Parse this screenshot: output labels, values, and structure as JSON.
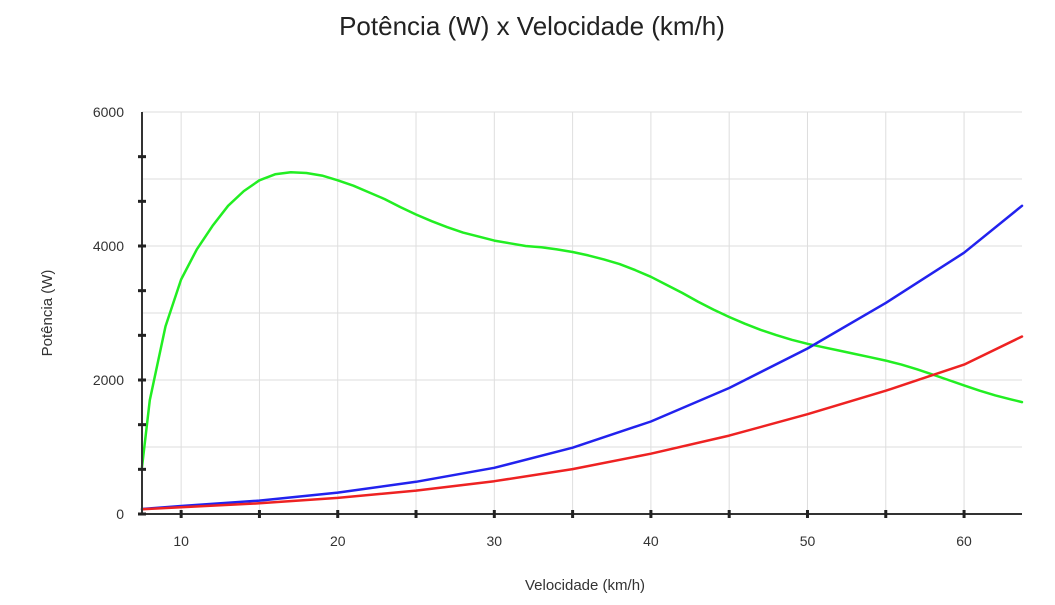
{
  "chart_data": {
    "type": "line",
    "title": "Potência (W) x Velocidade (km/h)",
    "xlabel": "Velocidade (km/h)",
    "ylabel": "Potência (W)",
    "xlim": [
      7.5,
      63.7
    ],
    "ylim": [
      0,
      6000
    ],
    "xticks": [
      10,
      20,
      30,
      40,
      50,
      60
    ],
    "yticks": [
      0,
      2000,
      4000,
      6000
    ],
    "grid": true,
    "colors": {
      "green": "#22ee22",
      "blue": "#2222ee",
      "red": "#ee2222",
      "grid": "#dedede",
      "axis": "#333333"
    },
    "series": [
      {
        "color": "#22ee22",
        "x": [
          7.5,
          8,
          9,
          10,
          11,
          12,
          13,
          14,
          15,
          16,
          17,
          18,
          19,
          20,
          21,
          22,
          23,
          24,
          25,
          26,
          27,
          28,
          29,
          30,
          31,
          32,
          33,
          34,
          35,
          36,
          37,
          38,
          39,
          40,
          41,
          42,
          43,
          44,
          45,
          46,
          47,
          48,
          49,
          50,
          51,
          52,
          53,
          54,
          55,
          56,
          57,
          58,
          59,
          60,
          61,
          62,
          63,
          63.7
        ],
        "y": [
          700,
          1700,
          2800,
          3500,
          3950,
          4300,
          4600,
          4820,
          4980,
          5070,
          5100,
          5090,
          5050,
          4980,
          4900,
          4800,
          4700,
          4580,
          4470,
          4370,
          4280,
          4200,
          4140,
          4080,
          4040,
          4000,
          3980,
          3950,
          3910,
          3860,
          3800,
          3730,
          3640,
          3540,
          3420,
          3300,
          3170,
          3050,
          2940,
          2840,
          2750,
          2670,
          2600,
          2540,
          2490,
          2440,
          2390,
          2340,
          2290,
          2230,
          2160,
          2080,
          2000,
          1920,
          1840,
          1770,
          1710,
          1670
        ]
      },
      {
        "color": "#2222ee",
        "x": [
          7.5,
          10,
          15,
          20,
          25,
          30,
          35,
          40,
          45,
          50,
          55,
          60,
          63.7
        ],
        "y": [
          75,
          120,
          200,
          320,
          480,
          690,
          990,
          1380,
          1880,
          2470,
          3150,
          3900,
          4600
        ]
      },
      {
        "color": "#ee2222",
        "x": [
          7.5,
          10,
          15,
          20,
          25,
          30,
          35,
          40,
          45,
          50,
          55,
          60,
          63.7
        ],
        "y": [
          70,
          100,
          160,
          240,
          350,
          490,
          670,
          900,
          1170,
          1490,
          1840,
          2230,
          2650
        ]
      }
    ]
  }
}
